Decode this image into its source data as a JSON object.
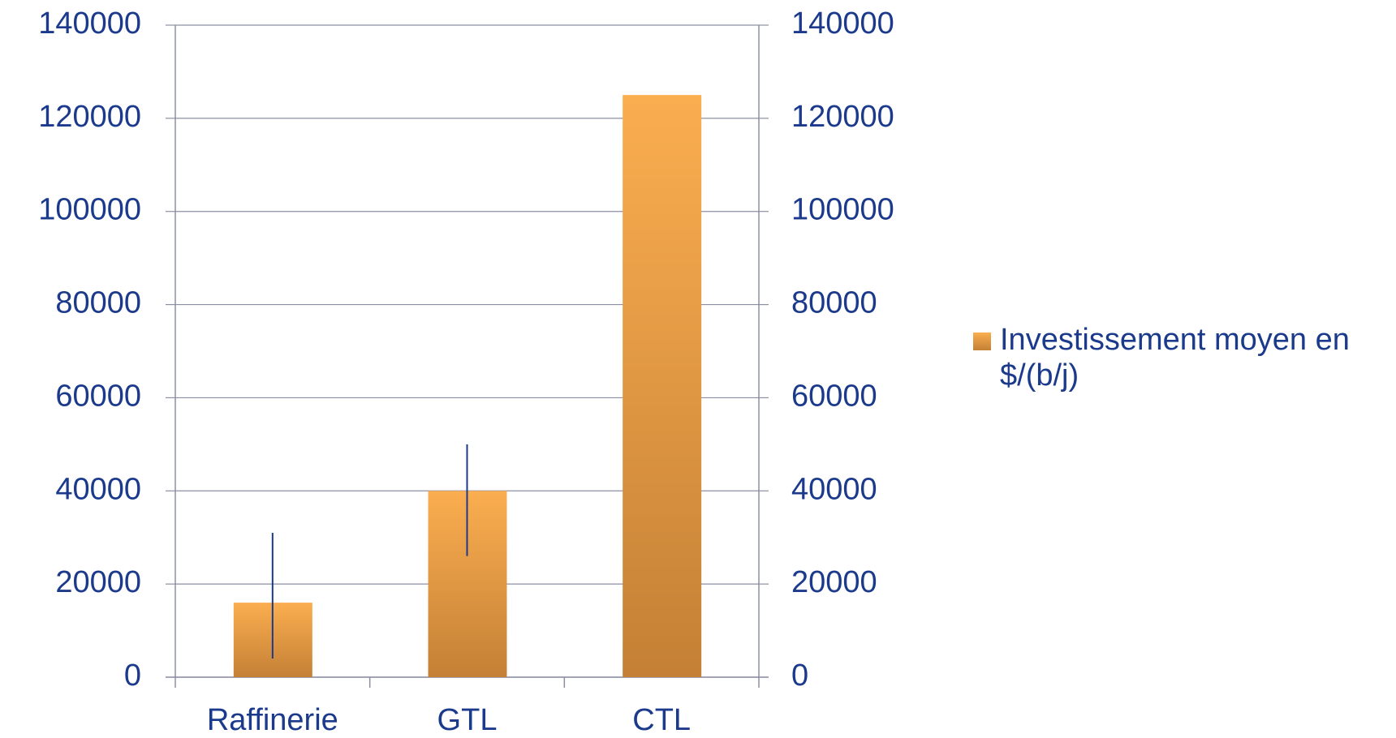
{
  "chart_data": {
    "type": "bar",
    "categories": [
      "Raffinerie",
      "GTL",
      "CTL"
    ],
    "series": [
      {
        "name": "Investissement moyen en $/(b/j)",
        "color": "#fbae50",
        "values": [
          16000,
          40000,
          125000
        ],
        "low": [
          4000,
          26000,
          null
        ],
        "high": [
          31000,
          50000,
          null
        ]
      }
    ],
    "ylim": [
      0,
      140000
    ],
    "yticks": [
      0,
      20000,
      40000,
      60000,
      80000,
      100000,
      120000,
      140000
    ],
    "y2lim": [
      0,
      140000
    ],
    "y2ticks": [
      0,
      20000,
      40000,
      60000,
      80000,
      100000,
      120000,
      140000
    ],
    "grid": true,
    "legend": "right"
  }
}
